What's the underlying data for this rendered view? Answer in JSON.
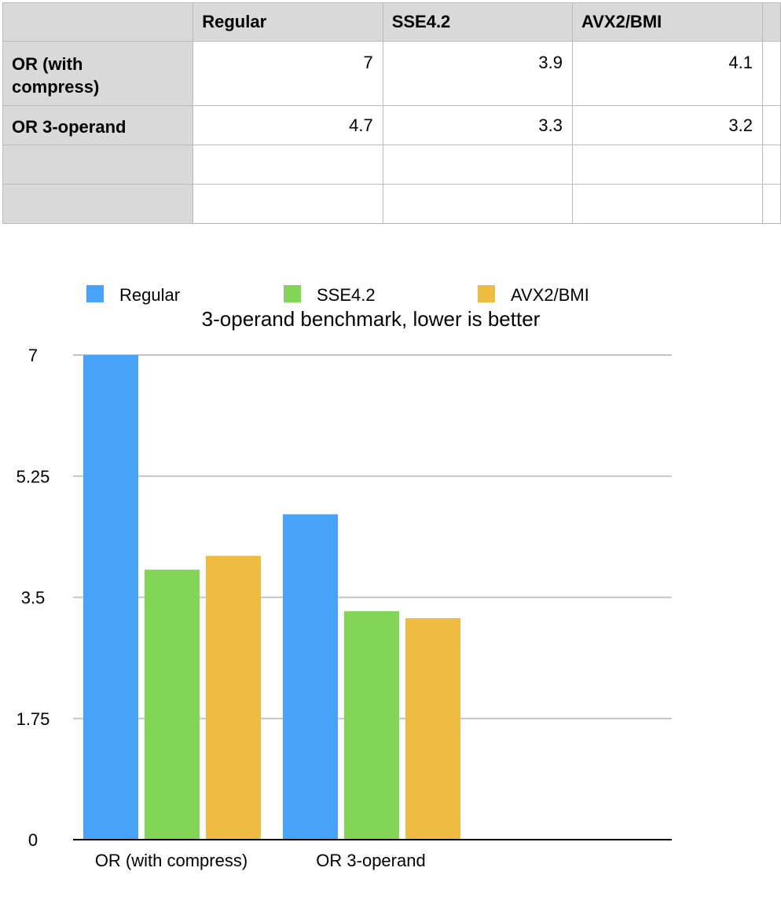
{
  "table": {
    "columns": [
      "",
      "Regular",
      "SSE4.2",
      "AVX2/BMI",
      ""
    ],
    "rows": [
      {
        "label": "OR (with compress)",
        "label_lines": [
          "OR (with",
          "compress)"
        ],
        "values": [
          "7",
          "3.9",
          "4.1"
        ]
      },
      {
        "label": "OR 3-operand",
        "values": [
          "4.7",
          "3.3",
          "3.2"
        ]
      },
      {
        "label": "",
        "values": [
          "",
          "",
          ""
        ]
      },
      {
        "label": "",
        "values": [
          "",
          "",
          ""
        ]
      }
    ]
  },
  "chart_data": {
    "type": "bar",
    "title": "3-operand benchmark, lower is better",
    "categories": [
      "OR (with compress)",
      "OR 3-operand"
    ],
    "series": [
      {
        "name": "Regular",
        "color": "#47a3f8",
        "values": [
          7,
          4.7
        ]
      },
      {
        "name": "SSE4.2",
        "color": "#83d557",
        "values": [
          3.9,
          3.3
        ]
      },
      {
        "name": "AVX2/BMI",
        "color": "#efbc42",
        "values": [
          4.1,
          3.2
        ]
      }
    ],
    "y_ticks": [
      0,
      1.75,
      3.5,
      5.25,
      7
    ],
    "y_tick_labels": [
      "0",
      "1.75",
      "3.5",
      "5.25",
      "7"
    ],
    "ylim": [
      0,
      7
    ],
    "xlabel": "",
    "ylabel": "",
    "grid": true,
    "legend_position": "top"
  }
}
